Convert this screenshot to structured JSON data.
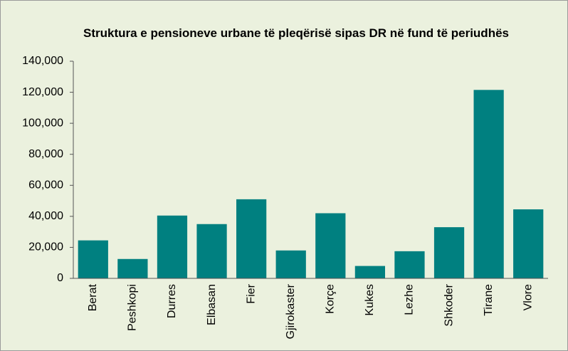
{
  "chart_data": {
    "type": "bar",
    "title": "Struktura e pensioneve urbane të pleqërisë sipas DR në fund të periudhës",
    "categories": [
      "Berat",
      "Peshkopi",
      "Durres",
      "Elbasan",
      "Fier",
      "Gjirokaster",
      "Korçe",
      "Kukes",
      "Lezhe",
      "Shkoder",
      "Tirane",
      "Vlore"
    ],
    "values": [
      24500,
      12500,
      40500,
      35000,
      51000,
      18000,
      42000,
      8000,
      17500,
      33000,
      121500,
      44500
    ],
    "color": "#008080",
    "ylim": [
      0,
      140000
    ],
    "yticks": [
      0,
      {
        "value": 20000,
        "label": "20,000"
      },
      {
        "value": 40000,
        "label": "40,000"
      },
      {
        "value": 60000,
        "label": "60,000"
      },
      {
        "value": 80000,
        "label": "80,000"
      },
      {
        "value": 100000,
        "label": "100,000"
      },
      {
        "value": 120000,
        "label": "120,000"
      },
      {
        "value": 140000,
        "label": "140,000"
      }
    ],
    "grid": false
  }
}
